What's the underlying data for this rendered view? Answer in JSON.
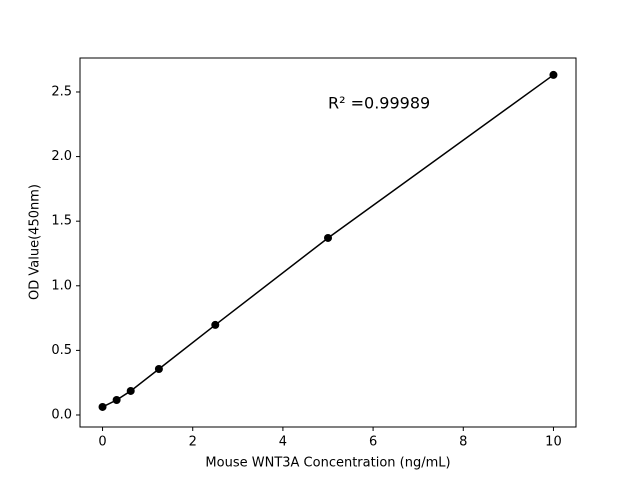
{
  "chart_data": {
    "type": "line",
    "x_label": "Mouse WNT3A Concentration (ng/mL)",
    "y_label": "OD Value(450nm)",
    "annotation": "R² =0.99989",
    "x": [
      0,
      0.3125,
      0.625,
      1.25,
      2.5,
      5,
      10
    ],
    "values": [
      0.062,
      0.116,
      0.186,
      0.356,
      0.697,
      1.37,
      2.632
    ],
    "color": "#000000",
    "xlim": [
      -0.5,
      10.5
    ],
    "xticks": [
      0,
      2,
      4,
      6,
      8,
      10
    ],
    "ylim": [
      -0.093,
      2.763
    ],
    "yticks": [
      {
        "value": 0,
        "label": "0.0"
      },
      {
        "value": 0.5,
        "label": "0.5"
      },
      {
        "value": 1,
        "label": "1.0"
      },
      {
        "value": 1.5,
        "label": "1.5"
      },
      {
        "value": 2,
        "label": "2.0"
      },
      {
        "value": 2.5,
        "label": "2.5"
      }
    ],
    "grid": false
  }
}
